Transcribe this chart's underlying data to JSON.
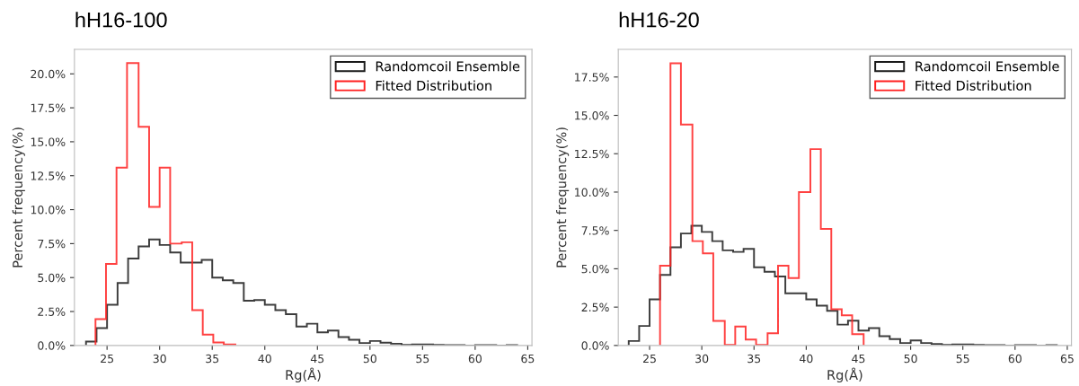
{
  "chart_data": [
    {
      "type": "histogram",
      "title": "hH16-100",
      "xlabel": "Rg(Å)",
      "ylabel": "Percent frequency(%)",
      "legend": "top right",
      "grid": false,
      "bins": [
        23,
        24,
        25,
        26,
        27,
        28,
        29,
        30,
        31,
        32,
        33,
        34,
        35,
        36,
        37,
        38,
        39,
        40,
        41,
        42,
        43,
        44,
        45,
        46,
        47,
        48,
        49,
        50,
        51,
        52,
        53,
        54,
        55,
        56,
        57,
        58,
        59,
        60,
        61,
        62,
        63,
        64
      ],
      "xlim": [
        21.9,
        65.4
      ],
      "xticks": [
        25,
        30,
        35,
        40,
        45,
        50,
        55,
        60,
        65
      ],
      "ylim": [
        0,
        21.8
      ],
      "yticks": [
        {
          "value": 0,
          "label": "0.0%"
        },
        {
          "value": 2.5,
          "label": "2.5%"
        },
        {
          "value": 5,
          "label": "5.0%"
        },
        {
          "value": 7.5,
          "label": "7.5%"
        },
        {
          "value": 10,
          "label": "10.0%"
        },
        {
          "value": 12.5,
          "label": "12.5%"
        },
        {
          "value": 15,
          "label": "15.0%"
        },
        {
          "value": 17.5,
          "label": "17.5%"
        },
        {
          "value": 20,
          "label": "20.0%"
        }
      ],
      "series": [
        {
          "name": "Randomcoil Ensemble",
          "color": "#1a1a1a",
          "values": [
            0.29,
            1.28,
            3.0,
            4.6,
            6.4,
            7.3,
            7.8,
            7.4,
            6.85,
            6.1,
            6.1,
            6.3,
            5.0,
            4.8,
            4.6,
            3.3,
            3.35,
            3.0,
            2.6,
            2.3,
            1.4,
            1.6,
            0.97,
            1.1,
            0.62,
            0.42,
            0.18,
            0.33,
            0.2,
            0.13,
            0.04,
            0.07,
            0.07,
            0.04,
            0.02,
            0.02,
            0,
            0.02,
            0.02,
            0,
            0.02
          ]
        },
        {
          "name": "Fitted Distribution",
          "color": "#ff2020",
          "bins": [
            23.9,
            24.9,
            25.9,
            26.9,
            28.0,
            29.0,
            30.0,
            31.0,
            32.1,
            33.1,
            34.1,
            35.1,
            36.1,
            37.2
          ],
          "values": [
            1.94,
            6.0,
            13.1,
            20.8,
            16.1,
            10.2,
            13.1,
            7.5,
            7.6,
            2.6,
            0.8,
            0.22,
            0.07
          ]
        }
      ]
    },
    {
      "type": "histogram",
      "title": "hH16-20",
      "xlabel": "Rg(Å)",
      "ylabel": "Percent frequency(%)",
      "legend": "top right",
      "grid": false,
      "bins": [
        23,
        24,
        25,
        26,
        27,
        28,
        29,
        30,
        31,
        32,
        33,
        34,
        35,
        36,
        37,
        38,
        39,
        40,
        41,
        42,
        43,
        44,
        45,
        46,
        47,
        48,
        49,
        50,
        51,
        52,
        53,
        54,
        55,
        56,
        57,
        58,
        59,
        60,
        61,
        62,
        63,
        64
      ],
      "xlim": [
        22.0,
        65.4
      ],
      "xticks": [
        25,
        30,
        35,
        40,
        45,
        50,
        55,
        60,
        65
      ],
      "ylim": [
        0,
        19.3
      ],
      "yticks": [
        {
          "value": 0,
          "label": "0.0%"
        },
        {
          "value": 2.5,
          "label": "2.5%"
        },
        {
          "value": 5,
          "label": "5.0%"
        },
        {
          "value": 7.5,
          "label": "7.5%"
        },
        {
          "value": 10,
          "label": "10.0%"
        },
        {
          "value": 12.5,
          "label": "12.5%"
        },
        {
          "value": 15,
          "label": "15.0%"
        },
        {
          "value": 17.5,
          "label": "17.5%"
        }
      ],
      "series": [
        {
          "name": "Randomcoil Ensemble",
          "color": "#1a1a1a",
          "values": [
            0.29,
            1.27,
            3.0,
            4.6,
            6.4,
            7.3,
            7.8,
            7.4,
            6.8,
            6.2,
            6.1,
            6.3,
            5.1,
            4.8,
            4.5,
            3.4,
            3.4,
            3.0,
            2.6,
            2.26,
            1.36,
            1.62,
            0.97,
            1.13,
            0.6,
            0.41,
            0.16,
            0.33,
            0.16,
            0.1,
            0.04,
            0.07,
            0.07,
            0.04,
            0.02,
            0.02,
            0,
            0.02,
            0.02,
            0,
            0.02
          ]
        },
        {
          "name": "Fitted Distribution",
          "color": "#ff2020",
          "bins": [
            26.0,
            27.0,
            28.0,
            29.1,
            30.1,
            31.1,
            32.2,
            33.2,
            34.2,
            35.2,
            36.3,
            37.3,
            38.3,
            39.3,
            40.4,
            41.4,
            42.4,
            43.4,
            44.4,
            45.5
          ],
          "values": [
            5.2,
            18.4,
            14.4,
            6.8,
            6.0,
            1.6,
            0.04,
            1.23,
            0.39,
            0.04,
            0.8,
            5.2,
            4.4,
            10.0,
            12.8,
            7.6,
            2.36,
            1.97,
            0.74
          ]
        }
      ]
    }
  ]
}
